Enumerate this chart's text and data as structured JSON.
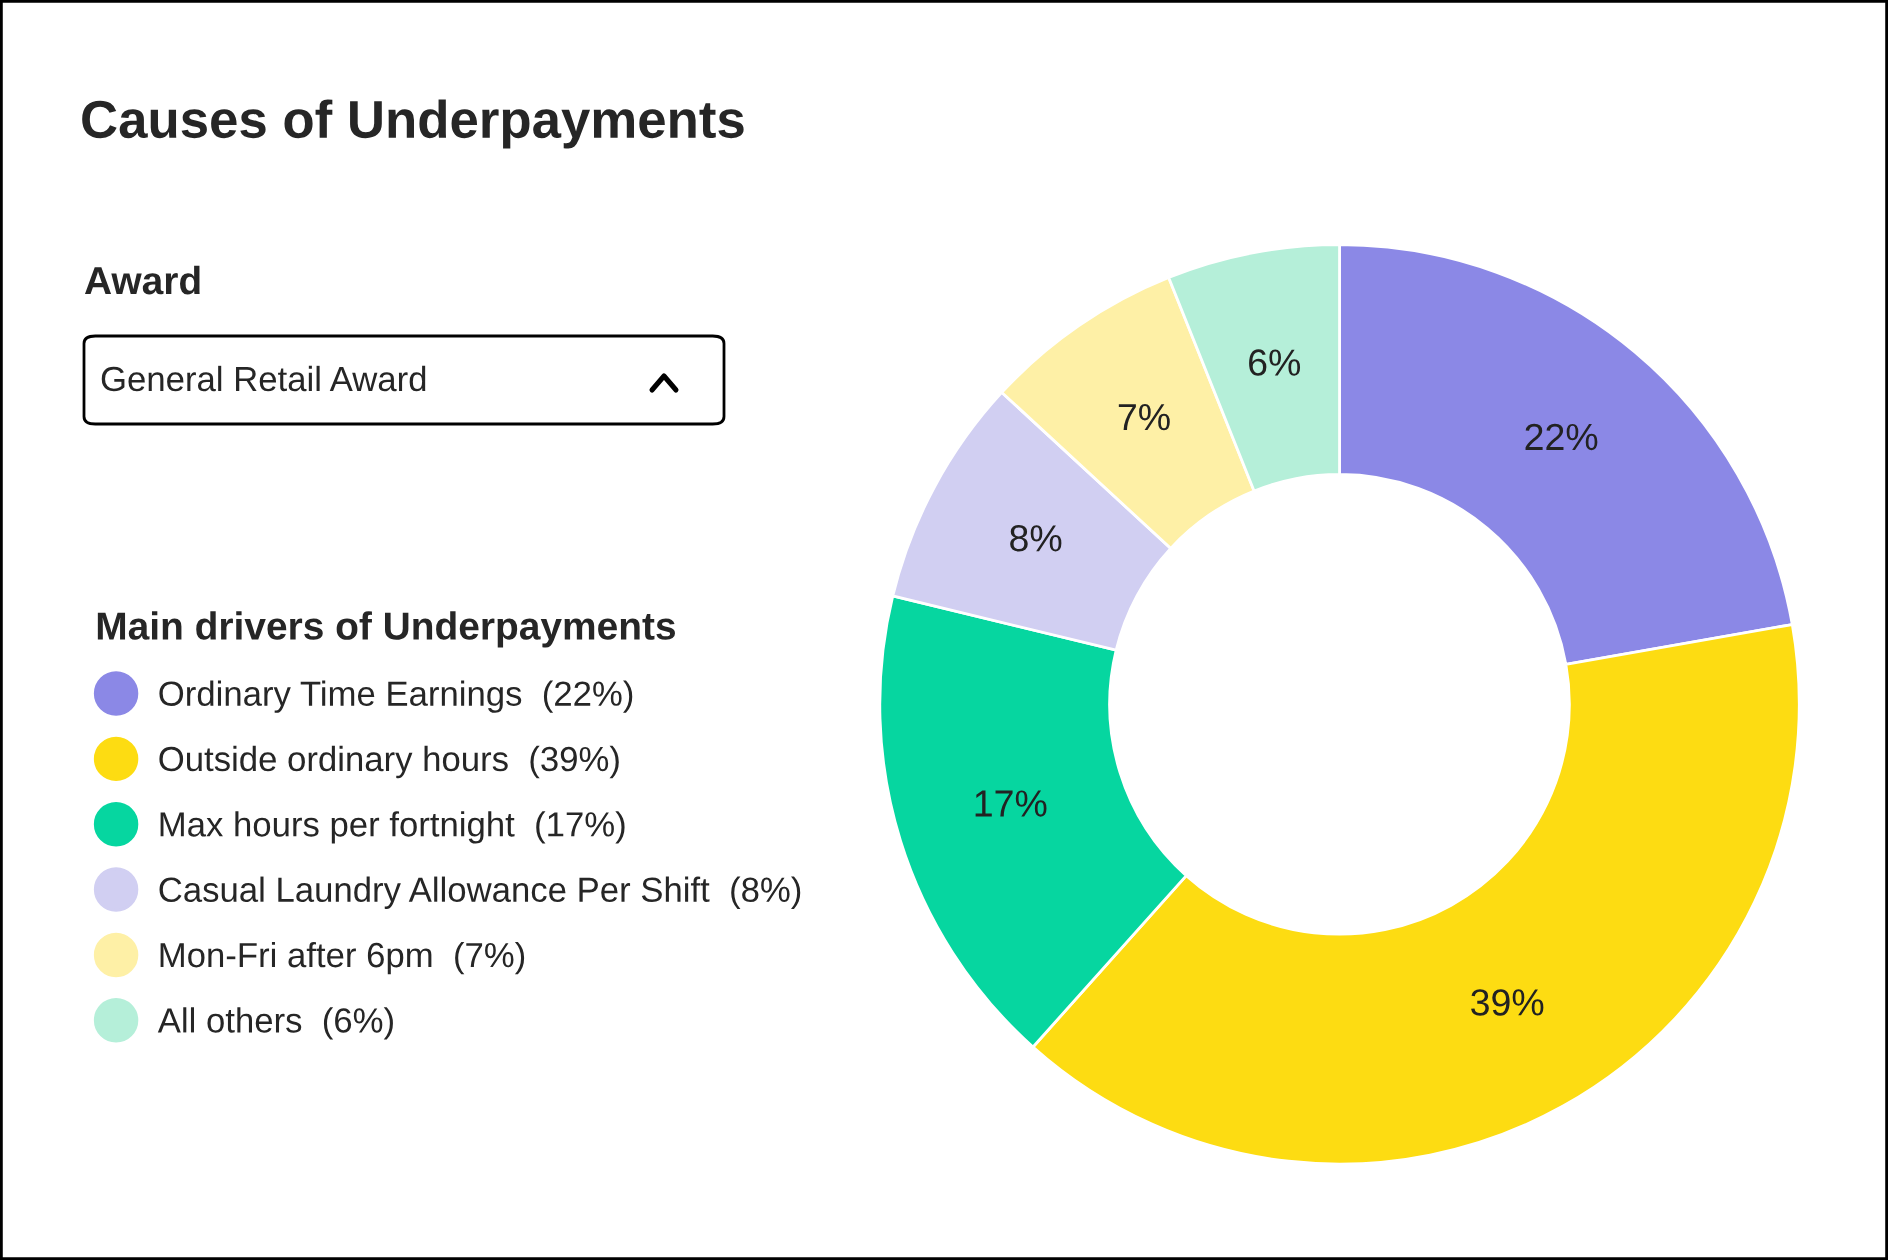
{
  "chart_data": {
    "type": "donut",
    "title": "Causes of Underpayments",
    "legend_title": "Main drivers of Underpayments",
    "annotations": [
      "Award",
      "General Retail Award"
    ],
    "categories": [
      "Ordinary Time Earnings  (22%)",
      "Outside ordinary hours  (39%)",
      "Max hours per fortnight  (17%)",
      "Casual Laundry Allowance Per Shift  (8%)",
      "Mon-Fri after 6pm  (7%)",
      "All others  (6%)"
    ],
    "values": [
      22,
      39,
      17,
      8,
      7,
      6
    ],
    "value_labels": [
      "22%",
      "39%",
      "17%",
      "8%",
      "7%",
      "6%"
    ],
    "colors": [
      "#8b88e6",
      "#fddc12",
      "#06d6a0",
      "#d1cff2",
      "#fef0a6",
      "#b5efd9"
    ],
    "legend": "left"
  }
}
